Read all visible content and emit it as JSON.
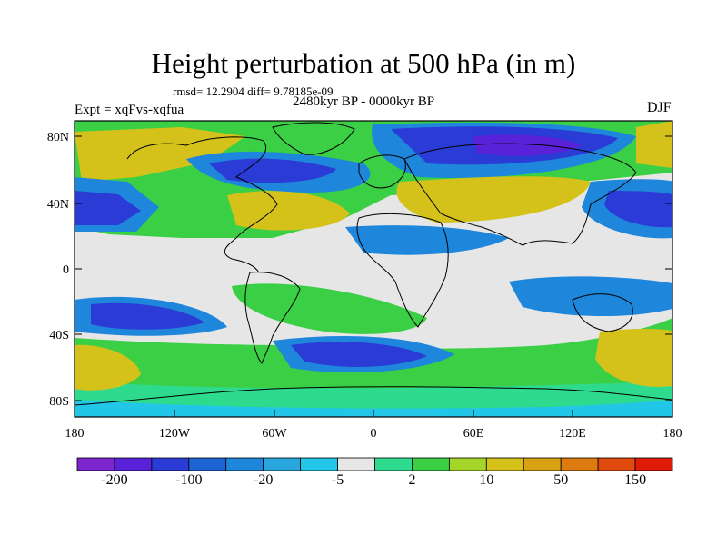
{
  "title": "Height perturbation at 500 hPa (in m)",
  "stats": "rmsd= 12.2904 diff= 9.78185e-09",
  "period": "2480kyr BP - 0000kyr BP",
  "experiment": "Expt = xqFvs-xqfua",
  "season": "DJF",
  "lat_ticks": [
    "80N",
    "40N",
    "0",
    "40S",
    "80S"
  ],
  "lon_ticks": [
    "180",
    "120W",
    "60W",
    "0",
    "60E",
    "120E",
    "180"
  ],
  "colorbar": {
    "colors": [
      "#7d26cd",
      "#5a22d8",
      "#2a3bd6",
      "#1c64d2",
      "#1e86db",
      "#2aa6df",
      "#22c6e6",
      "#e6e6e6",
      "#2edb8e",
      "#3bcf45",
      "#a6d52a",
      "#d4c21b",
      "#d9a212",
      "#dd7a10",
      "#e04a0c",
      "#e01b08"
    ],
    "labels": [
      "-200",
      "-100",
      "-20",
      "-5",
      "2",
      "10",
      "50",
      "150"
    ]
  },
  "field_colors": {
    "neg_strong": "#2a3bd6",
    "neg_mid": "#1e86db",
    "neg_light": "#22c6e6",
    "neutral": "#e6e6e6",
    "pos_light": "#2edb8e",
    "pos_mid": "#3bcf45",
    "pos_strong": "#d4c21b",
    "deep_purple": "#5a22d8"
  }
}
